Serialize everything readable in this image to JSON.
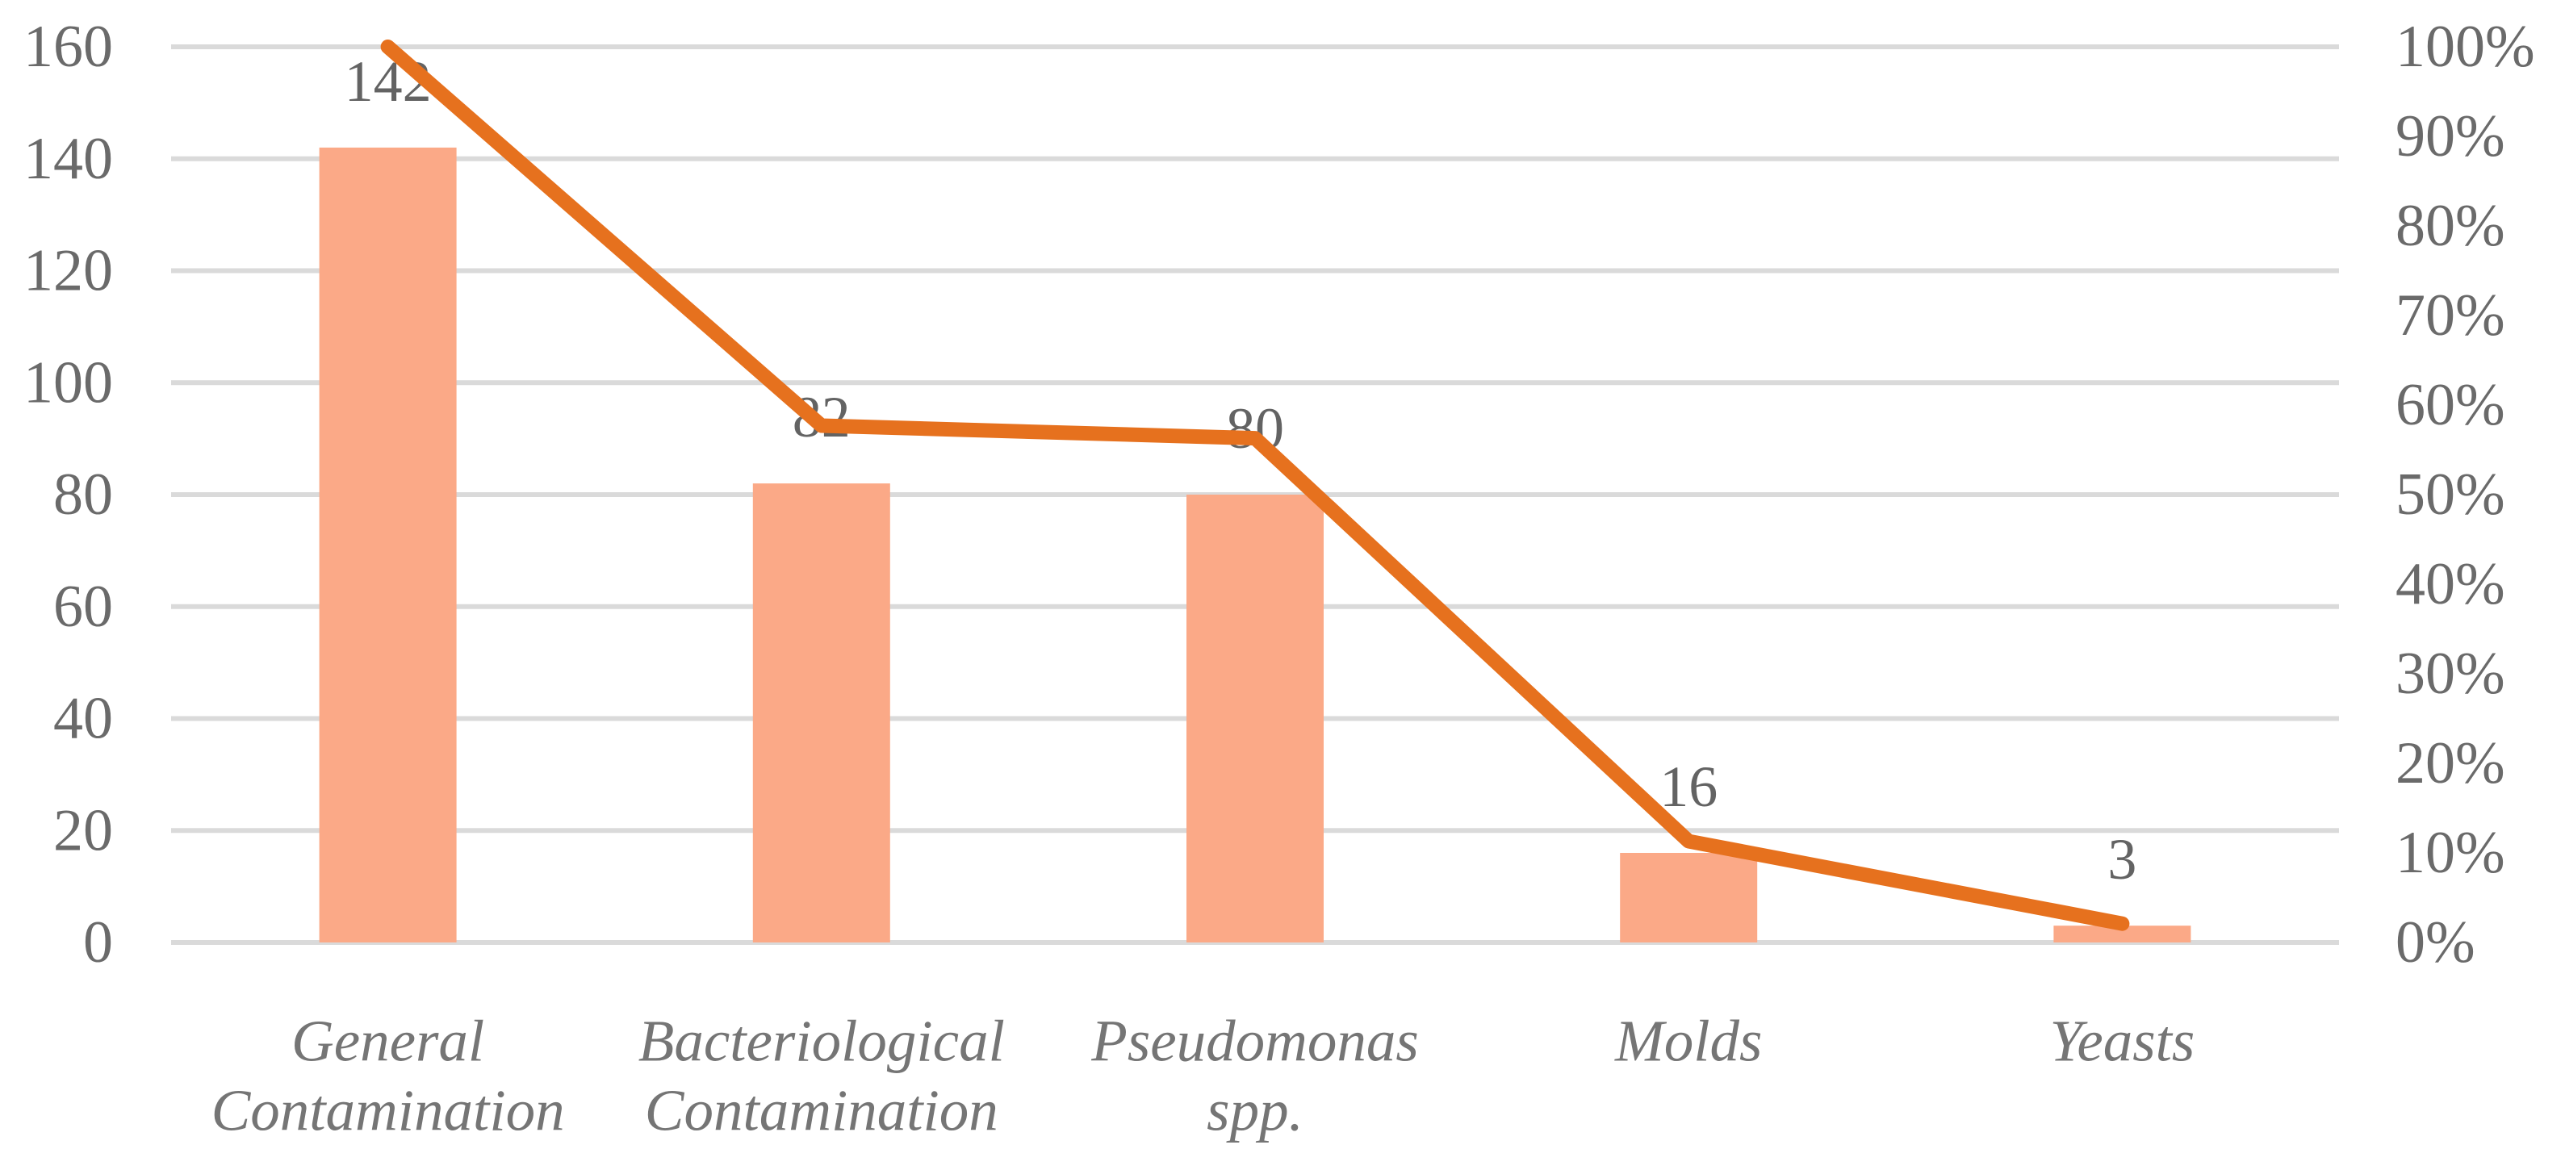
{
  "chart_data": {
    "type": "pareto-bar-line",
    "title": "",
    "xlabel": "",
    "ylabel": "",
    "legend": "none",
    "grid": true,
    "categories": [
      "General Contamination",
      "Bacteriological Contamination",
      "Pseudomonas spp.",
      "Molds",
      "Yeasts"
    ],
    "category_lines": [
      [
        "General",
        "Contamination"
      ],
      [
        "Bacteriological",
        "Contamination"
      ],
      [
        "Pseudomonas",
        "spp."
      ],
      [
        "Molds"
      ],
      [
        "Yeasts"
      ]
    ],
    "bar_values": [
      142,
      82,
      80,
      16,
      3
    ],
    "bar_value_labels": [
      "142",
      "82",
      "80",
      "16",
      "3"
    ],
    "line_percentages": [
      100,
      57.7,
      56.3,
      11.3,
      2.1
    ],
    "left_axis": {
      "min": 0,
      "max": 160,
      "step": 20,
      "tick_labels": [
        "0",
        "20",
        "40",
        "60",
        "80",
        "100",
        "120",
        "140",
        "160"
      ]
    },
    "right_axis": {
      "min": 0,
      "max": 100,
      "step": 10,
      "tick_labels": [
        "0%",
        "10%",
        "20%",
        "30%",
        "40%",
        "50%",
        "60%",
        "70%",
        "80%",
        "90%",
        "100%"
      ]
    },
    "colors": {
      "bar_fill": "#FBA987",
      "line_stroke": "#E6711E",
      "gridline": "#DADADA",
      "tick_text": "#6A6A6A",
      "category_text": "#757575",
      "data_label_text": "#636363",
      "background": "#FFFFFF"
    }
  },
  "accessibility": {
    "chart_description": "Pareto chart: bars for contamination counts with overlaid percentage line"
  }
}
